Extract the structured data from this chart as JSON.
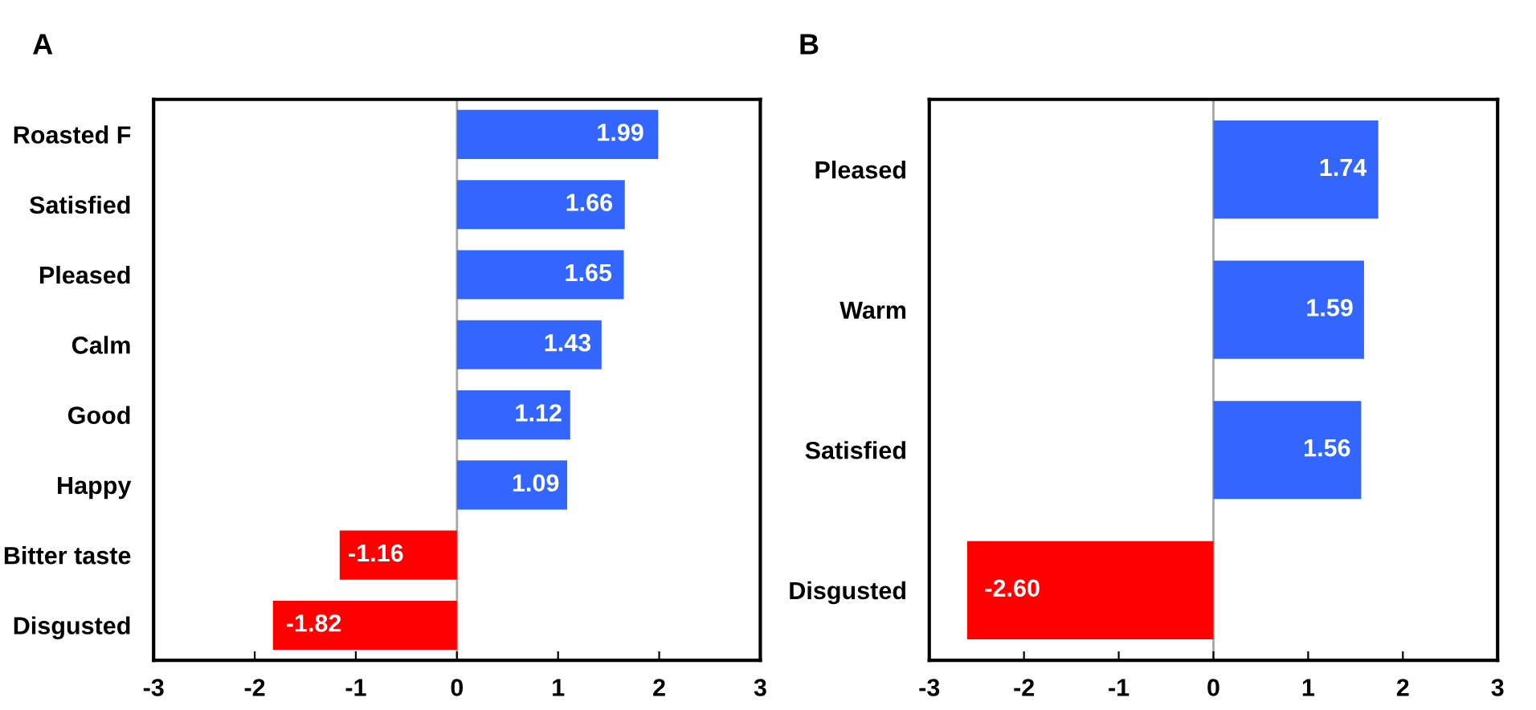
{
  "chart_data": [
    {
      "type": "bar",
      "orientation": "horizontal",
      "title": "A",
      "categories": [
        "Roasted F",
        "Satisfied",
        "Pleased",
        "Calm",
        "Good",
        "Happy",
        "Bitter taste",
        "Disgusted"
      ],
      "values": [
        1.99,
        1.66,
        1.65,
        1.43,
        1.12,
        1.09,
        -1.16,
        -1.82
      ],
      "colors": [
        "#3366ff",
        "#3366ff",
        "#3366ff",
        "#3366ff",
        "#3366ff",
        "#3366ff",
        "#ff0000",
        "#ff0000"
      ],
      "xlim": [
        -3,
        3
      ],
      "xticks": [
        -3,
        -2,
        -1,
        0,
        1,
        2,
        3
      ],
      "data_labels": true,
      "grid": false,
      "legend": false,
      "ref_lines": [
        {
          "axis": "x",
          "value": 0,
          "color": "#a6a6a6"
        }
      ]
    },
    {
      "type": "bar",
      "orientation": "horizontal",
      "title": "B",
      "categories": [
        "Pleased",
        "Warm",
        "Satisfied",
        "Disgusted"
      ],
      "values": [
        1.74,
        1.59,
        1.56,
        -2.6
      ],
      "value_labels": [
        "1.74",
        "1.59",
        "1.56",
        "-2.60"
      ],
      "colors": [
        "#3366ff",
        "#3366ff",
        "#3366ff",
        "#ff0000"
      ],
      "xlim": [
        -3,
        3
      ],
      "xticks": [
        -3,
        -2,
        -1,
        0,
        1,
        2,
        3
      ],
      "grid": false,
      "legend": false,
      "ref_lines": [
        {
          "axis": "x",
          "value": 0,
          "color": "#a6a6a6"
        }
      ]
    }
  ]
}
